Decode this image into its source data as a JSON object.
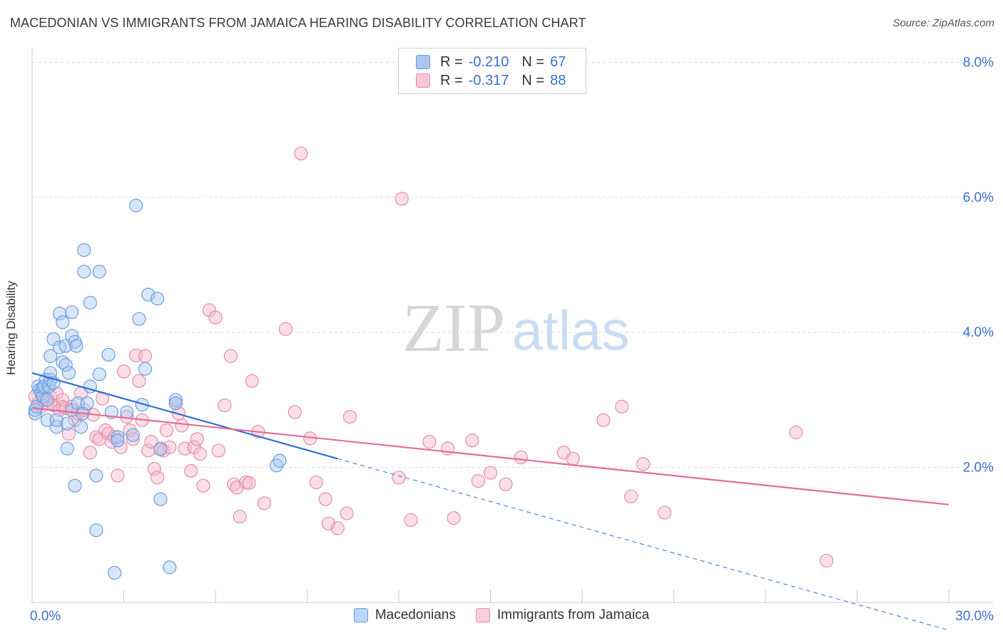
{
  "title": "MACEDONIAN VS IMMIGRANTS FROM JAMAICA HEARING DISABILITY CORRELATION CHART",
  "source": "Source: ZipAtlas.com",
  "watermark": {
    "zip": "ZIP",
    "atlas": "atlas"
  },
  "colors": {
    "blue_fill": "#a9c8f0",
    "blue_stroke": "#6a9ee0",
    "blue_line": "#2f6fd3",
    "pink_fill": "#f5b8cc",
    "pink_stroke": "#e98aaa",
    "pink_line": "#e56b95",
    "axis_text": "#3d6fd0",
    "grid": "#dddddd"
  },
  "legend": {
    "r_label": "R =",
    "n_label": "N =",
    "entries": [
      {
        "r": "-0.210",
        "n": "67"
      },
      {
        "r": "-0.317",
        "n": "88"
      }
    ]
  },
  "chart_data": {
    "type": "scatter",
    "title": "MACEDONIAN VS IMMIGRANTS FROM JAMAICA HEARING DISABILITY CORRELATION CHART",
    "xlabel": "",
    "ylabel": "Hearing Disability",
    "xlim": [
      0,
      30
    ],
    "ylim": [
      0,
      8.1
    ],
    "x_tick_labels": [
      "0.0%",
      "30.0%"
    ],
    "y_ticks": [
      2,
      4,
      6,
      8
    ],
    "y_tick_labels": [
      "2.0%",
      "4.0%",
      "6.0%",
      "8.0%"
    ],
    "legend_position": "bottom",
    "series": [
      {
        "name": "Macedonians",
        "r": -0.21,
        "n": 67,
        "trend": {
          "x0": 0,
          "y0": 3.4,
          "x1": 10.0,
          "y1": 2.13,
          "dashed_to_x": 30
        },
        "points": [
          [
            0.1,
            2.8
          ],
          [
            0.1,
            2.85
          ],
          [
            0.15,
            2.9
          ],
          [
            0.2,
            3.2
          ],
          [
            0.25,
            3.15
          ],
          [
            0.3,
            3.1
          ],
          [
            0.35,
            3.05
          ],
          [
            0.35,
            3.18
          ],
          [
            0.4,
            3.2
          ],
          [
            0.45,
            3.3
          ],
          [
            0.5,
            3.0
          ],
          [
            0.5,
            2.7
          ],
          [
            0.55,
            3.2
          ],
          [
            0.6,
            3.3
          ],
          [
            0.6,
            3.4
          ],
          [
            0.6,
            3.65
          ],
          [
            0.7,
            3.9
          ],
          [
            0.7,
            3.25
          ],
          [
            0.8,
            2.6
          ],
          [
            0.8,
            2.7
          ],
          [
            0.9,
            3.78
          ],
          [
            0.9,
            4.28
          ],
          [
            1.0,
            3.56
          ],
          [
            1.0,
            4.15
          ],
          [
            1.1,
            3.8
          ],
          [
            1.1,
            3.52
          ],
          [
            1.15,
            2.65
          ],
          [
            1.15,
            2.28
          ],
          [
            1.2,
            3.4
          ],
          [
            1.3,
            4.3
          ],
          [
            1.3,
            3.95
          ],
          [
            1.3,
            2.85
          ],
          [
            1.4,
            3.86
          ],
          [
            1.45,
            3.8
          ],
          [
            1.4,
            1.73
          ],
          [
            1.5,
            2.95
          ],
          [
            1.6,
            2.6
          ],
          [
            1.65,
            2.8
          ],
          [
            1.7,
            4.9
          ],
          [
            1.7,
            5.22
          ],
          [
            1.8,
            2.95
          ],
          [
            1.9,
            3.2
          ],
          [
            1.9,
            4.44
          ],
          [
            2.1,
            1.88
          ],
          [
            2.1,
            1.07
          ],
          [
            2.2,
            3.38
          ],
          [
            2.5,
            3.67
          ],
          [
            2.6,
            2.82
          ],
          [
            2.7,
            0.44
          ],
          [
            2.8,
            2.45
          ],
          [
            2.8,
            2.4
          ],
          [
            2.2,
            4.9
          ],
          [
            3.1,
            2.82
          ],
          [
            3.3,
            2.48
          ],
          [
            3.4,
            5.88
          ],
          [
            3.5,
            4.2
          ],
          [
            3.6,
            2.93
          ],
          [
            3.7,
            3.46
          ],
          [
            3.8,
            4.56
          ],
          [
            4.1,
            4.5
          ],
          [
            4.2,
            2.27
          ],
          [
            4.2,
            1.53
          ],
          [
            4.5,
            0.52
          ],
          [
            4.7,
            3.0
          ],
          [
            4.7,
            2.95
          ],
          [
            8.0,
            2.03
          ],
          [
            8.1,
            2.1
          ]
        ]
      },
      {
        "name": "Immigrants from Jamaica",
        "r": -0.317,
        "n": 88,
        "trend": {
          "x0": 0,
          "y0": 2.88,
          "x1": 30,
          "y1": 1.45
        },
        "points": [
          [
            0.1,
            3.05
          ],
          [
            0.2,
            2.95
          ],
          [
            0.3,
            2.9
          ],
          [
            0.4,
            3.0
          ],
          [
            0.5,
            2.95
          ],
          [
            0.6,
            3.05
          ],
          [
            0.7,
            2.92
          ],
          [
            0.8,
            3.1
          ],
          [
            0.9,
            2.85
          ],
          [
            1.0,
            3.0
          ],
          [
            1.0,
            2.9
          ],
          [
            1.1,
            2.88
          ],
          [
            1.2,
            2.5
          ],
          [
            1.3,
            2.9
          ],
          [
            1.4,
            2.7
          ],
          [
            1.5,
            2.8
          ],
          [
            1.6,
            3.1
          ],
          [
            1.7,
            2.85
          ],
          [
            1.9,
            2.22
          ],
          [
            2.0,
            2.78
          ],
          [
            2.1,
            2.45
          ],
          [
            2.2,
            2.42
          ],
          [
            2.3,
            3.02
          ],
          [
            2.4,
            2.55
          ],
          [
            2.5,
            2.5
          ],
          [
            2.6,
            2.38
          ],
          [
            2.7,
            2.45
          ],
          [
            2.8,
            1.88
          ],
          [
            2.9,
            2.3
          ],
          [
            3.0,
            3.42
          ],
          [
            3.1,
            2.75
          ],
          [
            3.2,
            2.55
          ],
          [
            3.3,
            2.42
          ],
          [
            3.4,
            3.66
          ],
          [
            3.5,
            3.28
          ],
          [
            3.6,
            2.7
          ],
          [
            3.7,
            3.65
          ],
          [
            3.8,
            2.25
          ],
          [
            3.9,
            2.38
          ],
          [
            4.0,
            1.98
          ],
          [
            4.1,
            1.85
          ],
          [
            4.2,
            2.28
          ],
          [
            4.3,
            2.25
          ],
          [
            4.4,
            2.55
          ],
          [
            4.5,
            2.3
          ],
          [
            4.7,
            2.95
          ],
          [
            4.8,
            2.8
          ],
          [
            4.9,
            2.62
          ],
          [
            5.0,
            2.28
          ],
          [
            5.2,
            1.95
          ],
          [
            5.3,
            2.3
          ],
          [
            5.4,
            2.42
          ],
          [
            5.5,
            2.2
          ],
          [
            5.6,
            1.73
          ],
          [
            5.8,
            4.33
          ],
          [
            6.0,
            4.22
          ],
          [
            6.1,
            2.25
          ],
          [
            6.3,
            2.92
          ],
          [
            6.5,
            3.65
          ],
          [
            6.6,
            1.75
          ],
          [
            6.7,
            1.7
          ],
          [
            6.8,
            1.27
          ],
          [
            7.0,
            1.78
          ],
          [
            7.1,
            1.77
          ],
          [
            7.2,
            3.28
          ],
          [
            7.4,
            2.53
          ],
          [
            7.6,
            1.47
          ],
          [
            8.3,
            4.05
          ],
          [
            8.6,
            2.82
          ],
          [
            8.8,
            6.65
          ],
          [
            9.1,
            2.43
          ],
          [
            9.3,
            1.78
          ],
          [
            9.6,
            1.53
          ],
          [
            9.7,
            1.17
          ],
          [
            10.0,
            1.1
          ],
          [
            10.3,
            1.32
          ],
          [
            10.4,
            2.75
          ],
          [
            12.0,
            1.85
          ],
          [
            12.1,
            5.98
          ],
          [
            12.4,
            1.22
          ],
          [
            13.0,
            2.38
          ],
          [
            13.6,
            2.28
          ],
          [
            13.8,
            1.25
          ],
          [
            14.4,
            2.4
          ],
          [
            14.6,
            1.8
          ],
          [
            15.0,
            1.92
          ],
          [
            15.5,
            1.75
          ],
          [
            16.0,
            2.15
          ]
        ]
      }
    ],
    "extra_points_pink": [
      [
        17.4,
        2.22
      ],
      [
        17.7,
        2.13
      ],
      [
        18.7,
        2.7
      ],
      [
        19.3,
        2.9
      ],
      [
        19.6,
        1.57
      ],
      [
        20.0,
        2.05
      ],
      [
        20.7,
        1.33
      ],
      [
        25.0,
        2.52
      ],
      [
        26.0,
        0.62
      ]
    ]
  },
  "bottom_legend": [
    {
      "label": "Macedonians"
    },
    {
      "label": "Immigrants from Jamaica"
    }
  ]
}
